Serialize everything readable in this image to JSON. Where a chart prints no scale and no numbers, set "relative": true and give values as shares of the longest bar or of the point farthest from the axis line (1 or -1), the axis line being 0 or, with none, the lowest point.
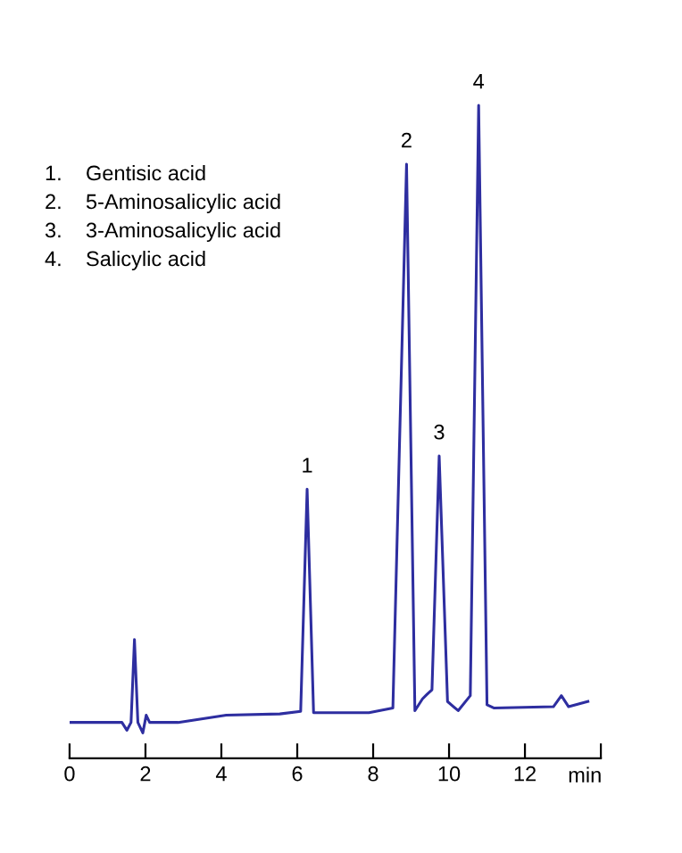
{
  "chart_data": {
    "type": "line",
    "relative": true,
    "xlabel": "min",
    "xlim": [
      0,
      14
    ],
    "xticks": [
      0,
      2,
      4,
      6,
      8,
      10,
      12,
      {
        "value": 14,
        "label": null
      }
    ],
    "grid": false,
    "legend": false,
    "marker": "none",
    "line_style": "solid",
    "series": [
      {
        "color": "#2e2ea0",
        "x": [
          0.0,
          1.38,
          1.51,
          1.62,
          1.71,
          1.8,
          1.93,
          2.02,
          2.11,
          2.86,
          4.13,
          5.54,
          6.09,
          6.26,
          6.43,
          7.89,
          8.52,
          8.88,
          9.1,
          9.3,
          9.42,
          9.55,
          9.74,
          9.96,
          10.24,
          10.56,
          10.78,
          11.0,
          11.19,
          12.75,
          12.96,
          13.15,
          13.66
        ],
        "values": [
          0.055,
          0.055,
          0.043,
          0.055,
          0.182,
          0.055,
          0.039,
          0.066,
          0.055,
          0.055,
          0.066,
          0.068,
          0.072,
          0.412,
          0.07,
          0.07,
          0.077,
          0.91,
          0.073,
          0.091,
          0.098,
          0.105,
          0.463,
          0.087,
          0.073,
          0.096,
          1.0,
          0.082,
          0.077,
          0.079,
          0.096,
          0.079,
          0.087
        ]
      }
    ],
    "annotations": [
      {
        "text": "1",
        "x": 6.26,
        "y": 0.412
      },
      {
        "text": "2",
        "x": 8.88,
        "y": 0.91
      },
      {
        "text": "3",
        "x": 9.74,
        "y": 0.463
      },
      {
        "text": "4",
        "x": 10.78,
        "y": 1.0
      },
      "1.    Gentisic acid",
      "2.    5-Aminosalicylic acid",
      "3.    3-Aminosalicylic acid",
      "4.    Salicylic acid"
    ]
  }
}
